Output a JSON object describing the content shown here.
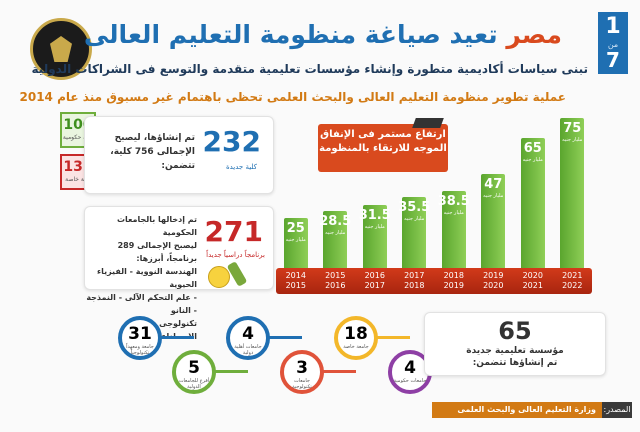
{
  "header": {
    "seal_name": "seal-logo",
    "seal_text": "المركز الإعلامي لمجلس الوزراء",
    "page_current": "1",
    "page_separator": "من",
    "page_total": "7",
    "title_accent": "مصر",
    "title_rest": "تعيد صياغة منظومة التعليم العالى",
    "subtitle": "تبنى سياسات أكاديمية متطورة وإنشاء مؤسسات تعليمية متقدمة والتوسع فى الشراكات الدولية",
    "headline": "عملية تطوير منظومة التعليم العالى والبحث العلمى تحظى باهتمام غير مسبوق منذ عام 2014"
  },
  "colleges": {
    "count": "232",
    "count_label": "كلية جديدة",
    "text_line1": "تم إنشاؤها، ليصبح",
    "text_line2": "الإجمالى 756 كلية،",
    "text_line3": "تتضمن:",
    "government_count": "100",
    "government_label": "كلية حكومية",
    "private_count": "132",
    "private_label": "كلية خاصة"
  },
  "programs": {
    "count": "271",
    "count_label": "برنامجاً دراسياً جديداً",
    "line1": "تم إدخالها بالجامعات الحكومية",
    "line2": "ليصبح الإجمالى 289 برنامجاً، أبرزها:",
    "line3": "الهندسة النووية - الفيزياء الحيوية",
    "line4": "- علم التحكم الآلى - النمذجة - النانو",
    "line5": "تكنولوجى - الذكاء الاصطناعى"
  },
  "spending_note": "ارتفاع مستمر فى الإنفاق الموجه للارتقاء بالمنظومة",
  "chart_data": {
    "type": "bar",
    "categories": [
      "2014 2015",
      "2015 2016",
      "2016 2017",
      "2017 2018",
      "2018 2019",
      "2019 2020",
      "2020 2021",
      "2021 2022"
    ],
    "values": [
      25,
      28.5,
      31.5,
      35.5,
      38.5,
      47,
      65,
      75
    ],
    "labels": [
      "25",
      "28.5",
      "31.5",
      "35.5",
      "38.5",
      "47",
      "65",
      "75"
    ],
    "unit": "مليار جنيه",
    "ylim": [
      0,
      75
    ]
  },
  "universities": [
    {
      "value": "31",
      "label": "جامعة ومعهداً تكنولوجياً",
      "color": "#1f6fb2"
    },
    {
      "value": "5",
      "label": "أفرع للجامعات الدولية",
      "color": "#6fae3c"
    },
    {
      "value": "4",
      "label": "جامعات أهلية دولية",
      "color": "#1f6fb2"
    },
    {
      "value": "3",
      "label": "جامعات تكنولوجية",
      "color": "#e0533a"
    },
    {
      "value": "18",
      "label": "جامعة خاصة",
      "color": "#f3b72a"
    },
    {
      "value": "4",
      "label": "جامعات حكومية",
      "color": "#8e3fa5"
    }
  ],
  "institutions": {
    "count": "65",
    "line1": "مؤسسة تعليمية جديدة",
    "line2": "تم إنشاؤها تتضمن:"
  },
  "footer": {
    "source_label": "المصدر:",
    "source_value": "وزارة التعليم العالى والبحث العلمى"
  }
}
